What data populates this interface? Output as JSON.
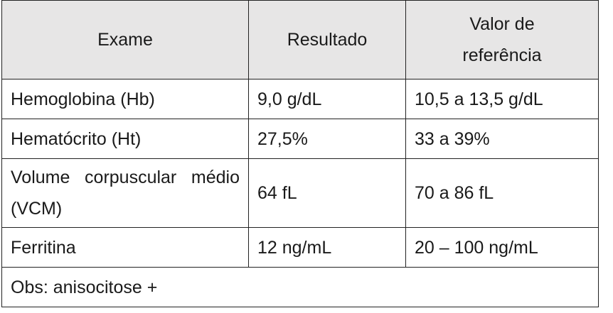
{
  "table": {
    "headers": [
      "Exame",
      "Resultado",
      "Valor de referência"
    ],
    "rows": [
      [
        "Hemoglobina (Hb)",
        "9,0 g/dL",
        "10,5 a 13,5 g/dL"
      ],
      [
        "Hematócrito (Ht)",
        "27,5%",
        "33 a 39%"
      ],
      [
        "Volume corpuscular médio (VCM)",
        "64 fL",
        "70 a 86 fL"
      ],
      [
        "Ferritina",
        "12 ng/mL",
        "20 – 100 ng/mL"
      ]
    ],
    "note": "Obs: anisocitose +"
  }
}
